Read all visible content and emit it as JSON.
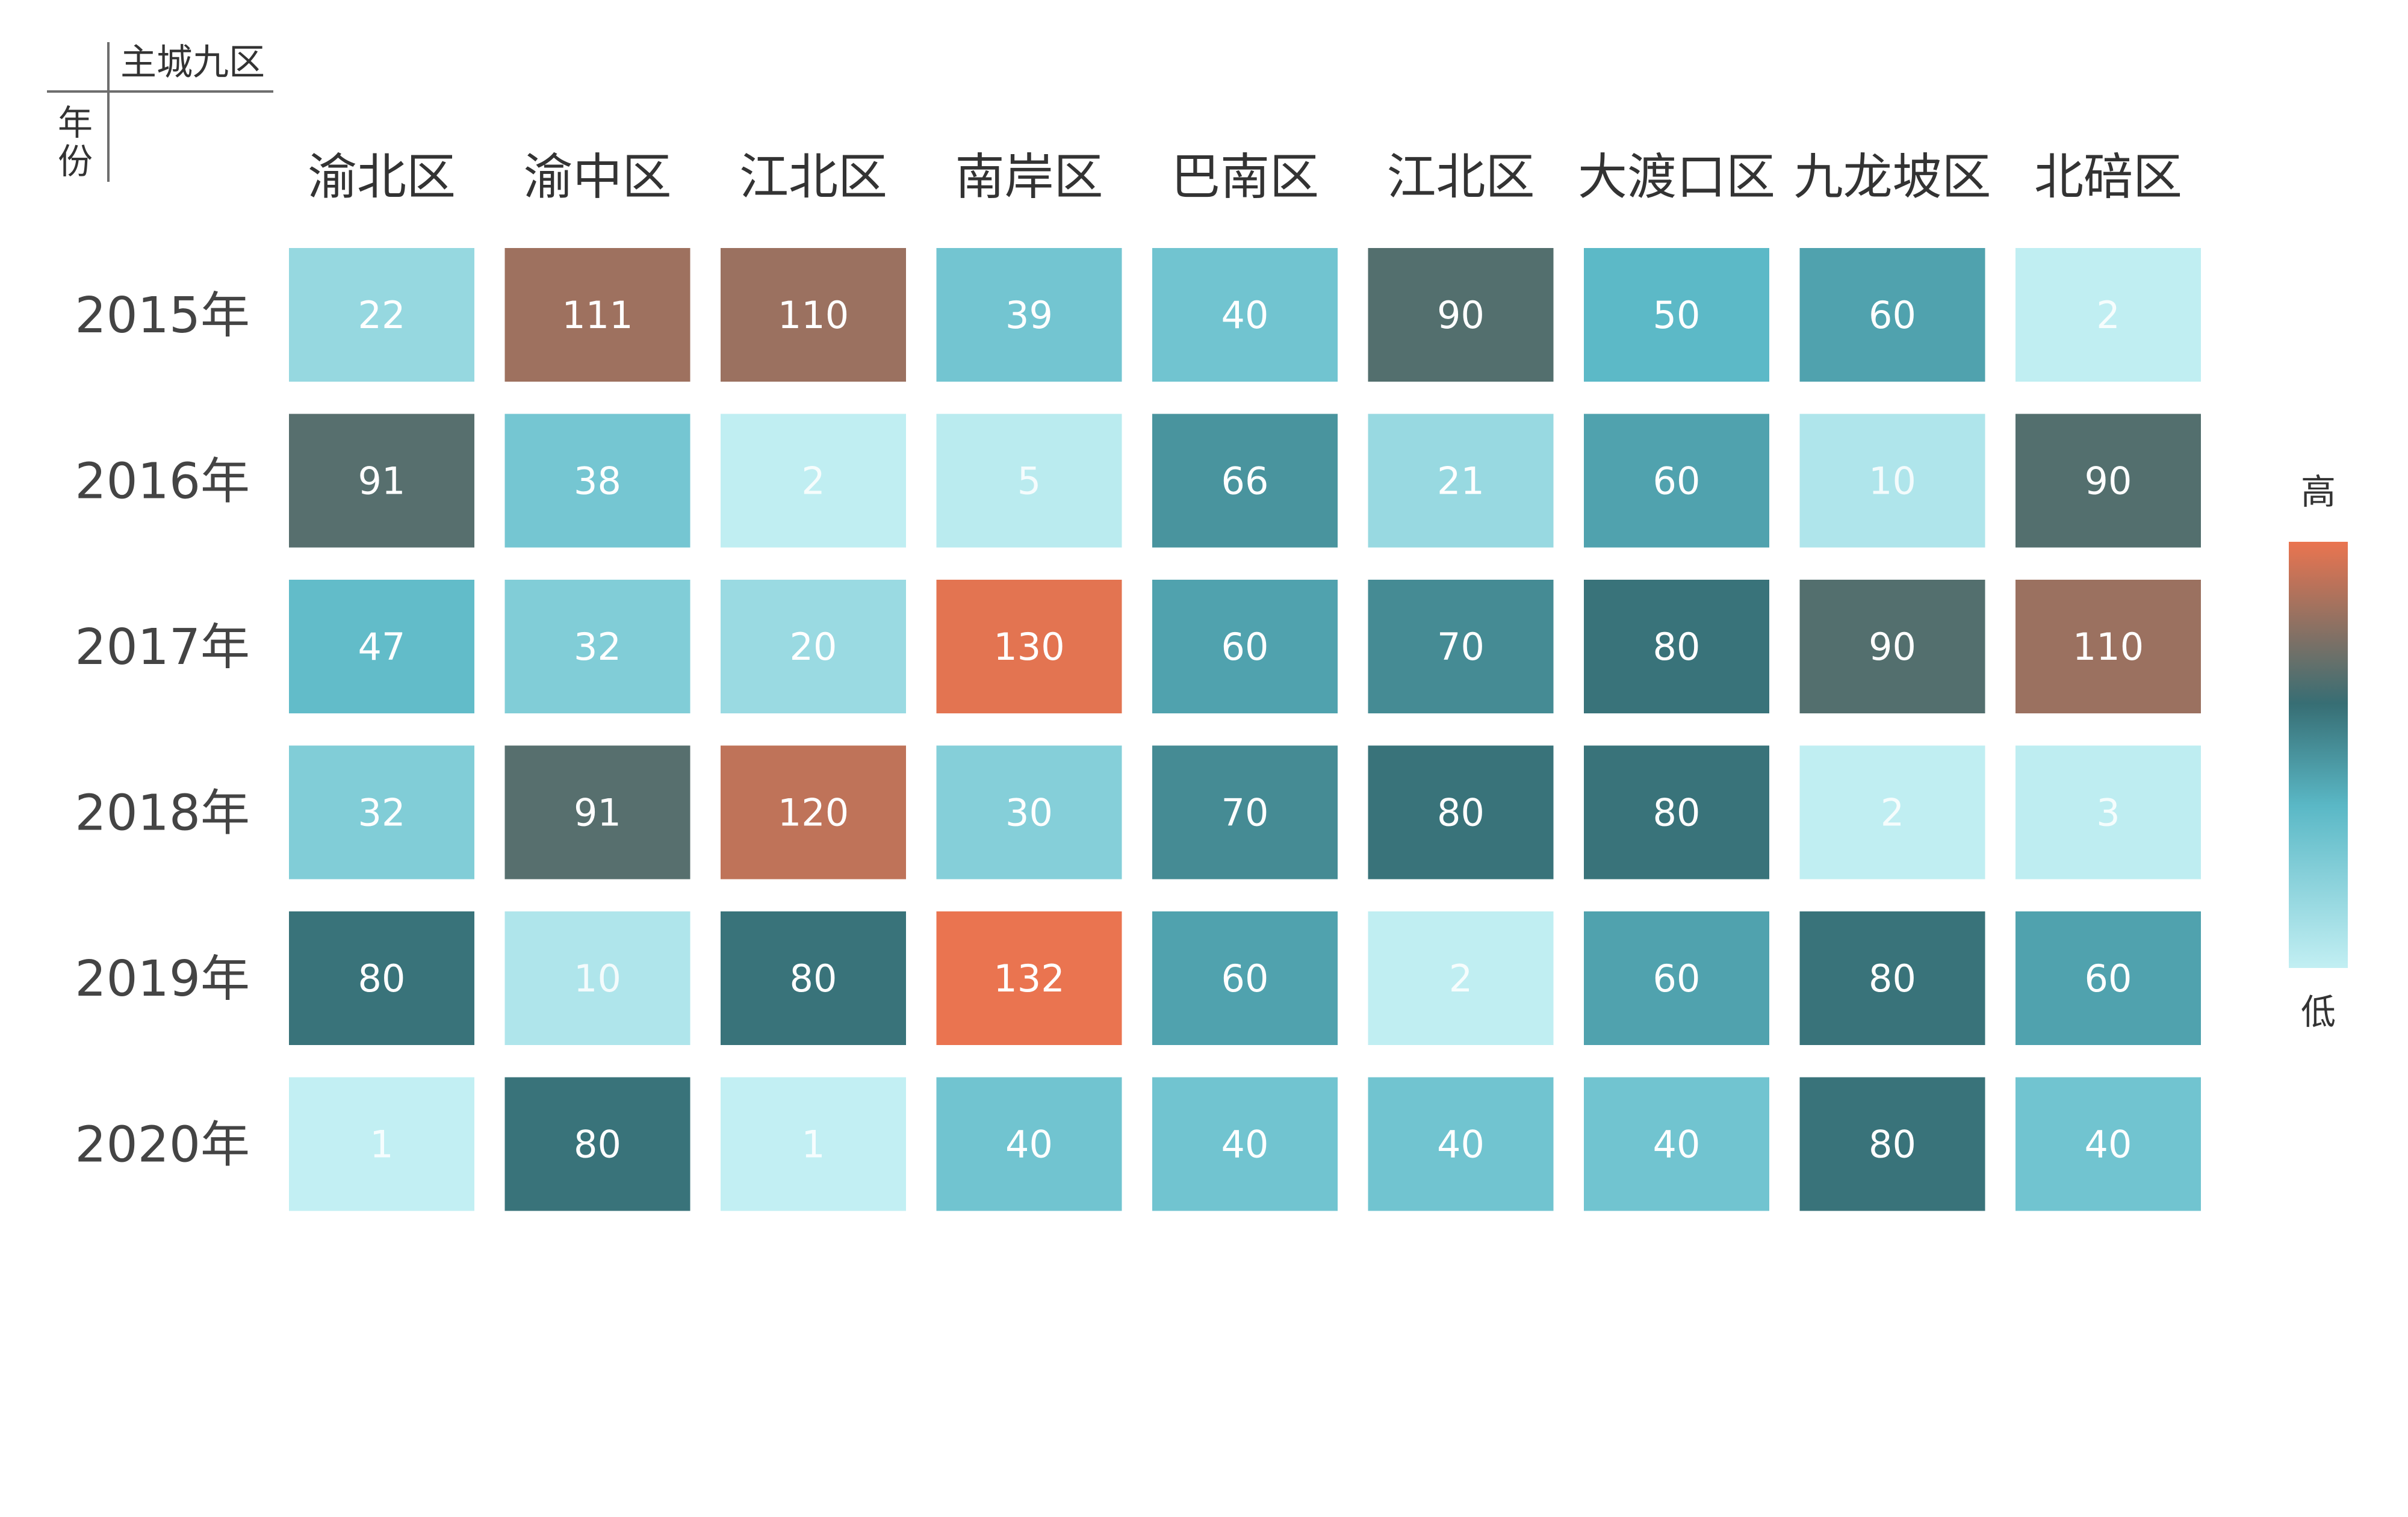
{
  "chart_data": {
    "type": "heatmap",
    "corner": {
      "column_header": "主城九区",
      "row_header": "年份"
    },
    "columns": [
      "渝北区",
      "渝中区",
      "江北区",
      "南岸区",
      "巴南区",
      "江北区",
      "大渡口区",
      "九龙坡区",
      "北碚区"
    ],
    "rows": [
      "2015年",
      "2016年",
      "2017年",
      "2018年",
      "2019年",
      "2020年"
    ],
    "values": [
      [
        22,
        111,
        110,
        39,
        40,
        90,
        50,
        60,
        2
      ],
      [
        91,
        38,
        2,
        5,
        66,
        21,
        60,
        10,
        90
      ],
      [
        47,
        32,
        20,
        130,
        60,
        70,
        80,
        90,
        110
      ],
      [
        32,
        91,
        120,
        30,
        70,
        80,
        80,
        2,
        3
      ],
      [
        80,
        10,
        80,
        132,
        60,
        2,
        60,
        80,
        60
      ],
      [
        1,
        80,
        1,
        40,
        40,
        40,
        40,
        80,
        40
      ]
    ],
    "legend": {
      "high_label": "高",
      "low_label": "低",
      "position": "right"
    },
    "color_scale": [
      "#c2eff3",
      "#5ab8c6",
      "#376e74",
      "#ea7450"
    ]
  }
}
